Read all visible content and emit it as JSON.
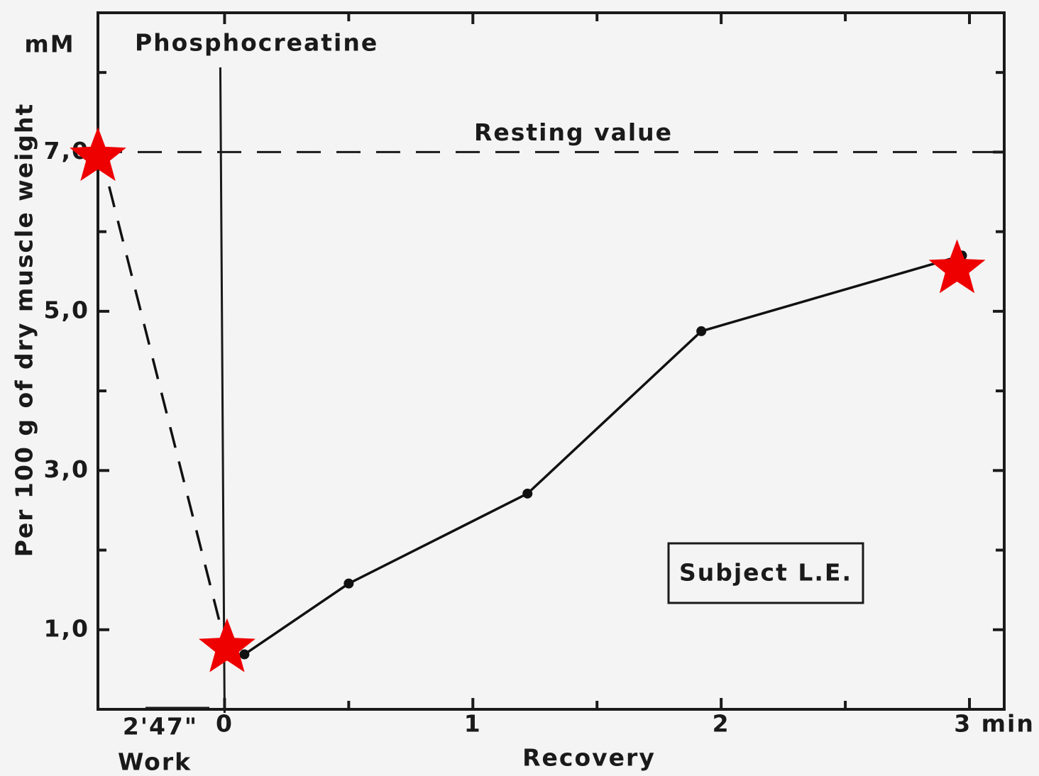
{
  "chart_data": {
    "type": "line",
    "title": "Phosphocreatine",
    "y_unit": "mM",
    "y_axis_label": "Per 100 g of dry muscle weight",
    "x_axis_label": "Recovery",
    "work_label": "Work",
    "work_duration_label": "2'47\"",
    "box_annotation": "Subject L.E.",
    "reference_line": {
      "value": 7.0,
      "label": "Resting value",
      "style": "dashed"
    },
    "xlim": [
      -0.51,
      3.14
    ],
    "ylim": [
      0,
      8.75
    ],
    "xticks": [
      0,
      1,
      2,
      {
        "value": 3,
        "label": "3 min"
      }
    ],
    "minor_xticks": [
      0.5,
      1.5,
      2.5
    ],
    "yticks": [
      {
        "value": 1.0,
        "label": "1,0"
      },
      {
        "value": 3.0,
        "label": "3,0"
      },
      {
        "value": 5.0,
        "label": "5,0"
      },
      {
        "value": 7.0,
        "label": "7,0"
      }
    ],
    "minor_yticks": [
      2,
      4,
      6,
      8
    ],
    "series": [
      {
        "color": "#111111",
        "style": "dashed",
        "marker": "none",
        "x": [
          -0.5,
          0.0
        ],
        "values": [
          7.0,
          0.85
        ]
      },
      {
        "color": "#111111",
        "style": "solid",
        "marker": "dot",
        "x": [
          0.08,
          0.5,
          1.22,
          1.92,
          2.97
        ],
        "values": [
          0.69,
          1.58,
          2.71,
          4.75,
          5.7
        ]
      },
      {
        "color": "#ee0000",
        "style": "none",
        "marker": "star",
        "x": [
          -0.51,
          0.01,
          2.95
        ],
        "values": [
          6.94,
          0.77,
          5.53
        ]
      }
    ]
  }
}
